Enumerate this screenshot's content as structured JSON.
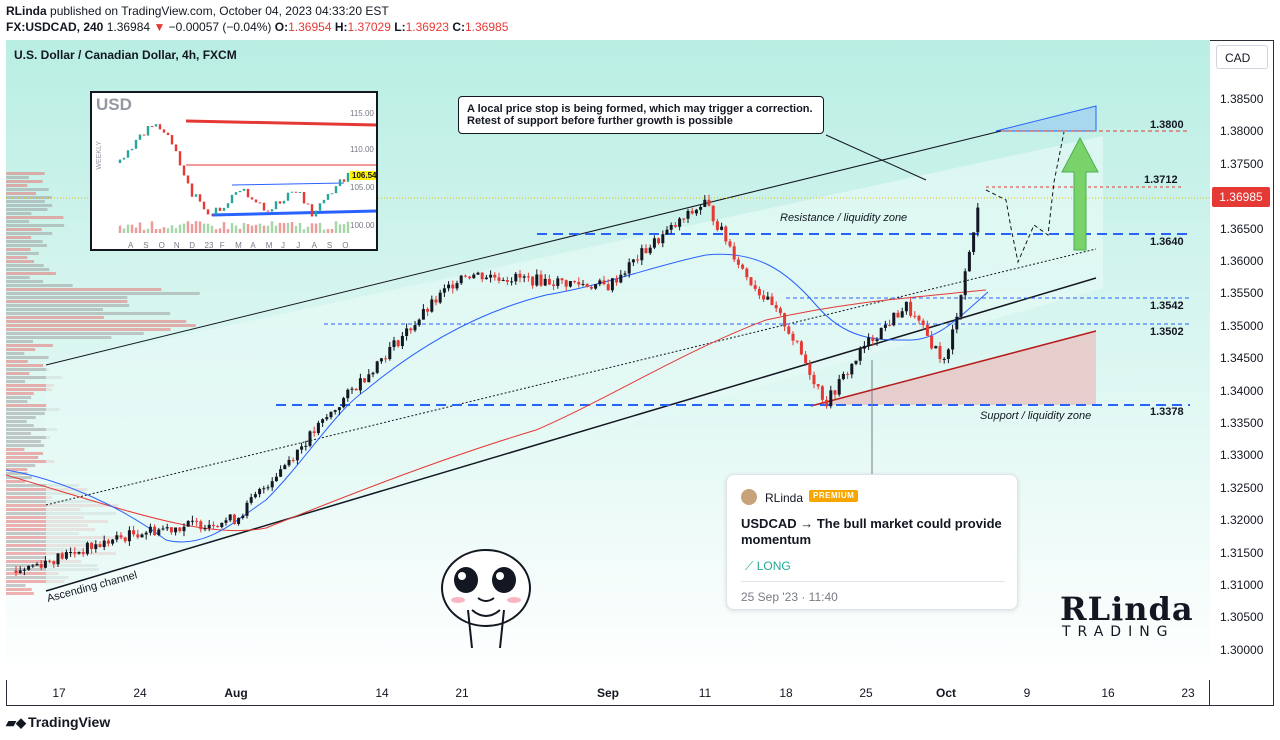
{
  "header": {
    "publisher": "RLinda",
    "published_on": "published on TradingView.com, October 04, 2023 04:33:20 EST",
    "symbol": "FX:USDCAD, 240",
    "last_price": "1.36984",
    "change": "−0.00057 (−0.04%)",
    "o_label": "O:",
    "o": "1.36954",
    "h_label": "H:",
    "h": "1.37029",
    "l_label": "L:",
    "l": "1.36923",
    "c_label": "C:",
    "c": "1.36985"
  },
  "chart": {
    "instrument": "U.S. Dollar / Canadian Dollar, 4h, FXCM",
    "currency": "CAD",
    "current_price_tag": "1.36985",
    "callout": "A local price stop is being formed, which may trigger a correction. Retest of support before further growth is possible",
    "resistance_label": "Resistance / liquidity zone",
    "support_label": "Support / liquidity zone",
    "channel_label": "Ascending channel",
    "levels": {
      "l1": "1.3800",
      "l2": "1.3712",
      "l3": "1.3640",
      "l4": "1.3542",
      "l5": "1.3502",
      "l6": "1.3378"
    },
    "y_ticks": [
      "1.38500",
      "1.38000",
      "1.37500",
      "1.37000",
      "1.36500",
      "1.36000",
      "1.35500",
      "1.35000",
      "1.34500",
      "1.34000",
      "1.33500",
      "1.33000",
      "1.32500",
      "1.32000",
      "1.31500",
      "1.31000",
      "1.30500",
      "1.30000"
    ],
    "x_ticks": [
      "17",
      "24",
      "Aug",
      "14",
      "21",
      "Sep",
      "11",
      "18",
      "25",
      "Oct",
      "9",
      "16",
      "23"
    ]
  },
  "inset": {
    "title": "USD",
    "timeframe": "WEEKLY",
    "last_value": "106.54",
    "y_ticks": [
      "115.00",
      "110.00",
      "105.00",
      "100.00"
    ],
    "months": [
      "A",
      "S",
      "O",
      "N",
      "D",
      "23",
      "F",
      "M",
      "A",
      "M",
      "J",
      "J",
      "A",
      "S",
      "O"
    ]
  },
  "idea": {
    "author": "RLinda",
    "badge": "PREMIUM",
    "title": "USDCAD → The bull market could provide momentum",
    "direction": "LONG",
    "date": "25 Sep '23 · 11:40"
  },
  "logo": {
    "top": "RLinda",
    "bottom": "TRADING"
  },
  "footer": {
    "brand": "TradingView"
  },
  "chart_data": {
    "type": "candlestick",
    "title": "U.S. Dollar / Canadian Dollar, 4h, FXCM",
    "ylim": [
      1.2975,
      1.388
    ],
    "x_categories": [
      "17",
      "24",
      "Aug",
      "14",
      "21",
      "Sep",
      "11",
      "18",
      "25",
      "Oct",
      "9",
      "16",
      "23"
    ],
    "approx_path": [
      {
        "x": "17",
        "y": 1.312
      },
      {
        "x": "24",
        "y": 1.318
      },
      {
        "x": "Aug",
        "y": 1.32
      },
      {
        "x": "Aug",
        "y": 1.327
      },
      {
        "x": "14",
        "y": 1.345
      },
      {
        "x": "21",
        "y": 1.358
      },
      {
        "x": "Sep",
        "y": 1.356
      },
      {
        "x": "Sep",
        "y": 1.362
      },
      {
        "x": "11",
        "y": 1.369
      },
      {
        "x": "11",
        "y": 1.358
      },
      {
        "x": "18",
        "y": 1.35
      },
      {
        "x": "18",
        "y": 1.338
      },
      {
        "x": "25",
        "y": 1.347
      },
      {
        "x": "25",
        "y": 1.353
      },
      {
        "x": "Oct",
        "y": 1.344
      },
      {
        "x": "Oct",
        "y": 1.37
      }
    ],
    "levels": [
      {
        "value": 1.38,
        "label": "1.3800"
      },
      {
        "value": 1.3712,
        "label": "1.3712"
      },
      {
        "value": 1.364,
        "label": "1.3640"
      },
      {
        "value": 1.3542,
        "label": "1.3542"
      },
      {
        "value": 1.3502,
        "label": "1.3502"
      },
      {
        "value": 1.3378,
        "label": "1.3378"
      }
    ],
    "last_price": 1.36985
  }
}
